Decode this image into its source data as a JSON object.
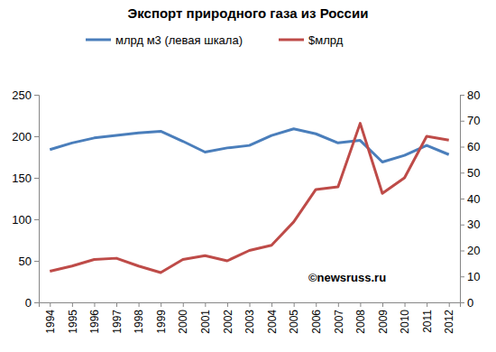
{
  "chart_data": {
    "type": "line",
    "title": "Экспорт природного газа из России",
    "annotations": [
      "©newsruss.ru"
    ],
    "categories": [
      "1994",
      "1995",
      "1996",
      "1997",
      "1998",
      "1999",
      "2000",
      "2001",
      "2002",
      "2003",
      "2004",
      "2005",
      "2006",
      "2007",
      "2008",
      "2009",
      "2010",
      "2011",
      "2012"
    ],
    "series": [
      {
        "name": "млрд м3 (левая шкала)",
        "color": "#4a7ebb",
        "values": [
          184,
          192,
          198,
          201,
          204,
          206,
          194,
          181,
          186,
          189,
          201,
          209,
          203,
          192,
          195,
          169,
          177,
          189,
          178
        ]
      },
      {
        "name": "$млрд",
        "color": "#be4b48",
        "axis": "y2",
        "values": [
          12,
          14,
          16.5,
          17,
          14,
          11.5,
          16.5,
          18,
          16,
          20,
          22,
          31,
          43.5,
          44.5,
          69,
          42,
          48,
          64,
          62.5
        ]
      }
    ],
    "ylim": [
      0,
      250
    ],
    "yticks": [
      0,
      50,
      100,
      150,
      200,
      250
    ],
    "y2lim": [
      0,
      80
    ],
    "y2ticks": [
      0,
      10,
      20,
      30,
      40,
      50,
      60,
      70,
      80
    ],
    "grid": false,
    "legend": "top"
  }
}
